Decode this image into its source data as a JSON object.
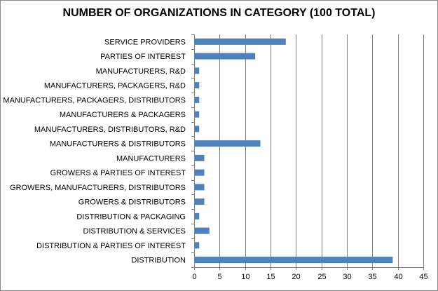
{
  "chart_data": {
    "type": "bar",
    "orientation": "horizontal",
    "title": "NUMBER OF ORGANIZATIONS IN CATEGORY (100 TOTAL)",
    "xlabel": "",
    "ylabel": "",
    "categories": [
      "SERVICE PROVIDERS",
      "PARTIES OF INTEREST",
      "MANUFACTURERS, R&D",
      "MANUFACTURERS, PACKAGERS, R&D",
      "MANUFACTURERS, PACKAGERS, DISTRIBUTORS",
      "MANUFACTURERS & PACKAGERS",
      "MANUFACTURERS, DISTRIBUTORS, R&D",
      "MANUFACTURERS & DISTRIBUTORS",
      "MANUFACTURERS",
      "GROWERS & PARTIES OF INTEREST",
      "GROWERS, MANUFACTURERS, DISTRIBUTORS",
      "GROWERS & DISTRIBUTORS",
      "DISTRIBUTION & PACKAGING",
      "DISTRIBUTION & SERVICES",
      "DISTRIBUTION & PARTIES OF INTEREST",
      "DISTRIBUTION"
    ],
    "values": [
      18,
      12,
      1,
      1,
      1,
      1,
      1,
      13,
      2,
      2,
      2,
      2,
      1,
      3,
      1,
      39
    ],
    "xlim": [
      0,
      45
    ],
    "xticks": [
      0,
      5,
      10,
      15,
      20,
      25,
      30,
      35,
      40,
      45
    ],
    "grid": "vertical",
    "legend": "none",
    "bar_color": "#4f81bd",
    "grid_color": "#7f7f7f"
  }
}
